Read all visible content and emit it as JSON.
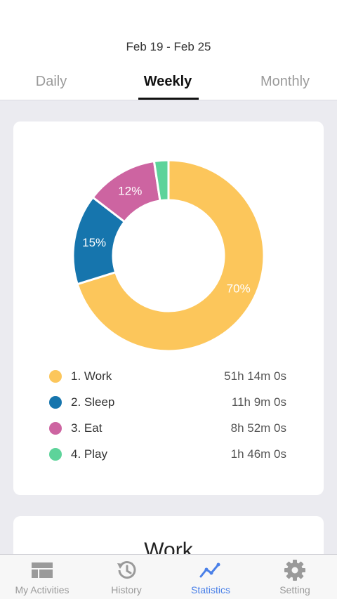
{
  "header": {
    "date_range": "Feb 19 - Feb 25",
    "tabs": [
      {
        "label": "Daily",
        "active": false
      },
      {
        "label": "Weekly",
        "active": true
      },
      {
        "label": "Monthly",
        "active": false
      }
    ]
  },
  "chart_data": {
    "type": "pie",
    "donut": true,
    "categories": [
      "Work",
      "Sleep",
      "Eat",
      "Play"
    ],
    "values": [
      51.233,
      11.15,
      8.867,
      1.767
    ],
    "percent_labels": [
      "70%",
      "15%",
      "12%",
      ""
    ],
    "colors": [
      "#fcc65b",
      "#1675ad",
      "#cd64a1",
      "#5dd39a"
    ]
  },
  "legend": [
    {
      "label": "1. Work",
      "value": "51h 14m 0s",
      "color": "#fcc65b"
    },
    {
      "label": "2. Sleep",
      "value": "11h 9m 0s",
      "color": "#1675ad"
    },
    {
      "label": "3. Eat",
      "value": "8h 52m 0s",
      "color": "#cd64a1"
    },
    {
      "label": "4. Play",
      "value": "1h 46m 0s",
      "color": "#5dd39a"
    }
  ],
  "next_card": {
    "title": "Work"
  },
  "bottom_nav": [
    {
      "label": "My Activities",
      "icon": "activities-icon",
      "active": false
    },
    {
      "label": "History",
      "icon": "history-icon",
      "active": false
    },
    {
      "label": "Statistics",
      "icon": "statistics-icon",
      "active": true
    },
    {
      "label": "Setting",
      "icon": "gear-icon",
      "active": false
    }
  ],
  "colors": {
    "accent": "#4a80e8",
    "inactive": "#9a9a9a"
  }
}
